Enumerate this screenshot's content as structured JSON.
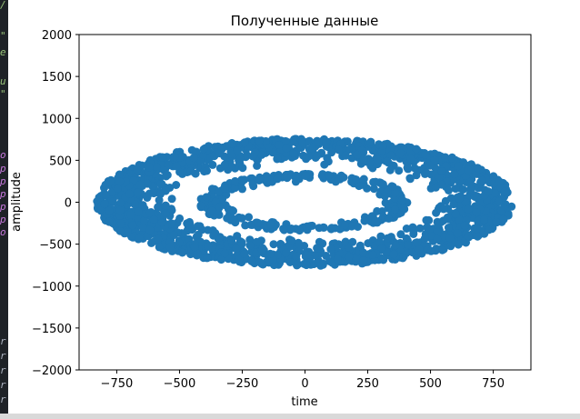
{
  "colors": {
    "marker": "#1f77b4",
    "editor_bg": "#1e2227"
  },
  "chart_data": {
    "type": "scatter",
    "title": "Полученные данные",
    "xlabel": "time",
    "ylabel": "amplitude",
    "xlim": [
      -900,
      900
    ],
    "ylim": [
      -2000,
      2000
    ],
    "xticks": [
      -750,
      -500,
      -250,
      0,
      250,
      500,
      750
    ],
    "xtick_labels": [
      "−750",
      "−500",
      "−250",
      "0",
      "250",
      "500",
      "750"
    ],
    "yticks": [
      -2000,
      -1500,
      -1000,
      -500,
      0,
      500,
      1000,
      1500,
      2000
    ],
    "ytick_labels": [
      "−2000",
      "−1500",
      "−1000",
      "−500",
      "0",
      "500",
      "1000",
      "1500",
      "2000"
    ],
    "grid": false,
    "series": [
      {
        "marker_color": "#1f77b4",
        "rings": [
          {
            "rx_inner": 520,
            "rx_outer": 830,
            "ry_inner": 440,
            "ry_outer": 760,
            "n_points": 1600
          },
          {
            "rx_inner": 290,
            "rx_outer": 420,
            "ry_inner": 240,
            "ry_outer": 340,
            "n_points": 260
          }
        ]
      }
    ]
  }
}
